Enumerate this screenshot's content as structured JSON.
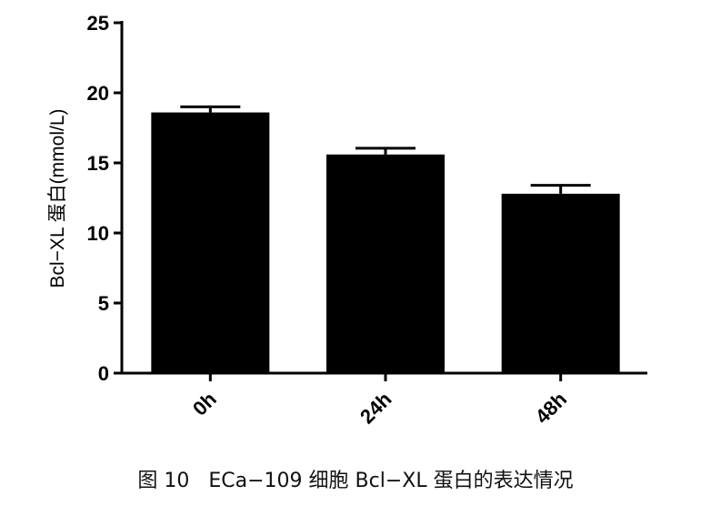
{
  "caption": "图 10   ECa−109 细胞 Bcl−XL 蛋白的表达情况",
  "chart_data": {
    "type": "bar",
    "categories": [
      "0h",
      "24h",
      "48h"
    ],
    "values": [
      18.6,
      15.6,
      12.8
    ],
    "errors": [
      0.4,
      0.45,
      0.6
    ],
    "ylabel": "Bcl−XL 蛋白(mmol/L)",
    "ylim": [
      0,
      25
    ],
    "yticks": [
      "0",
      "5",
      "10",
      "15",
      "20",
      "25"
    ],
    "grid": false,
    "bar_color": "#000000"
  }
}
